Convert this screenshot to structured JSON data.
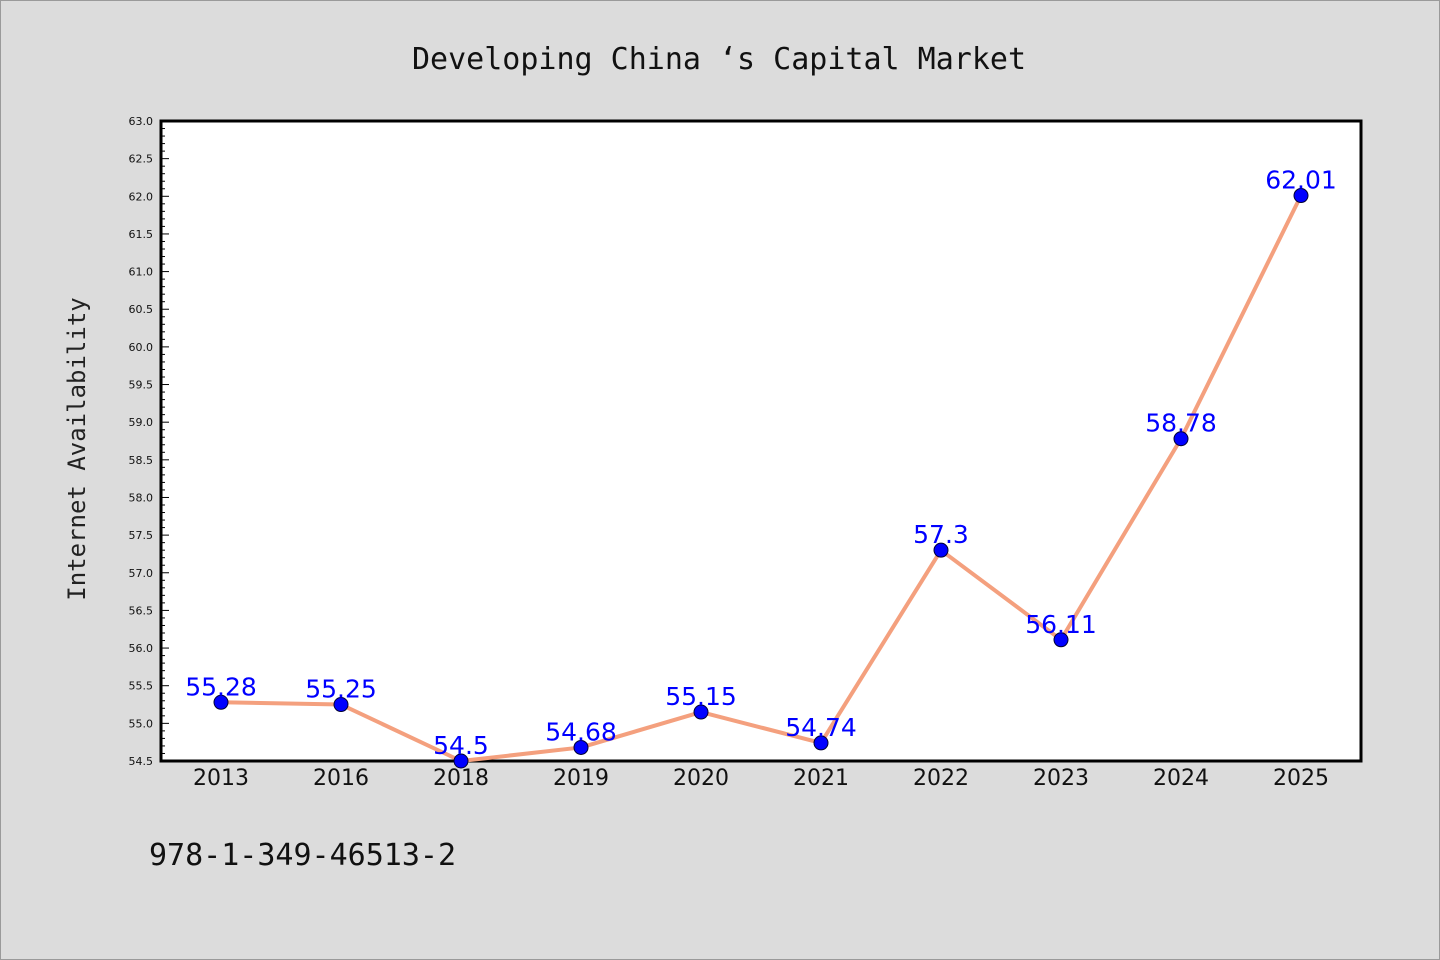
{
  "chart_data": {
    "type": "line",
    "title": "Developing China ‘s Capital Market",
    "ylabel": "Internet Availability",
    "xlabel": "",
    "categories": [
      "2013",
      "2016",
      "2018",
      "2019",
      "2020",
      "2021",
      "2022",
      "2023",
      "2024",
      "2025"
    ],
    "series": [
      {
        "values": [
          55.28,
          55.25,
          54.5,
          54.68,
          55.15,
          54.74,
          57.3,
          56.11,
          58.78,
          62.01
        ],
        "labels": [
          "55.28",
          "55.25",
          "54.5",
          "54.68",
          "55.15",
          "54.74",
          "57.3",
          "56.11",
          "58.78",
          "62.01"
        ]
      }
    ],
    "ylim": [
      54.5,
      63.0
    ],
    "yticks": [
      "54.5",
      "55.0",
      "55.5",
      "56.0",
      "56.5",
      "57.0",
      "57.5",
      "58.0",
      "58.5",
      "59.0",
      "59.5",
      "60.0",
      "60.5",
      "61.0",
      "61.5",
      "62.0",
      "62.5",
      "63.0"
    ],
    "grid": false,
    "line_color": "#f4a07e",
    "marker_color": "#0000ff",
    "label_color": "#0000ff"
  },
  "footer": {
    "code": "978-1-349-46513-2"
  }
}
